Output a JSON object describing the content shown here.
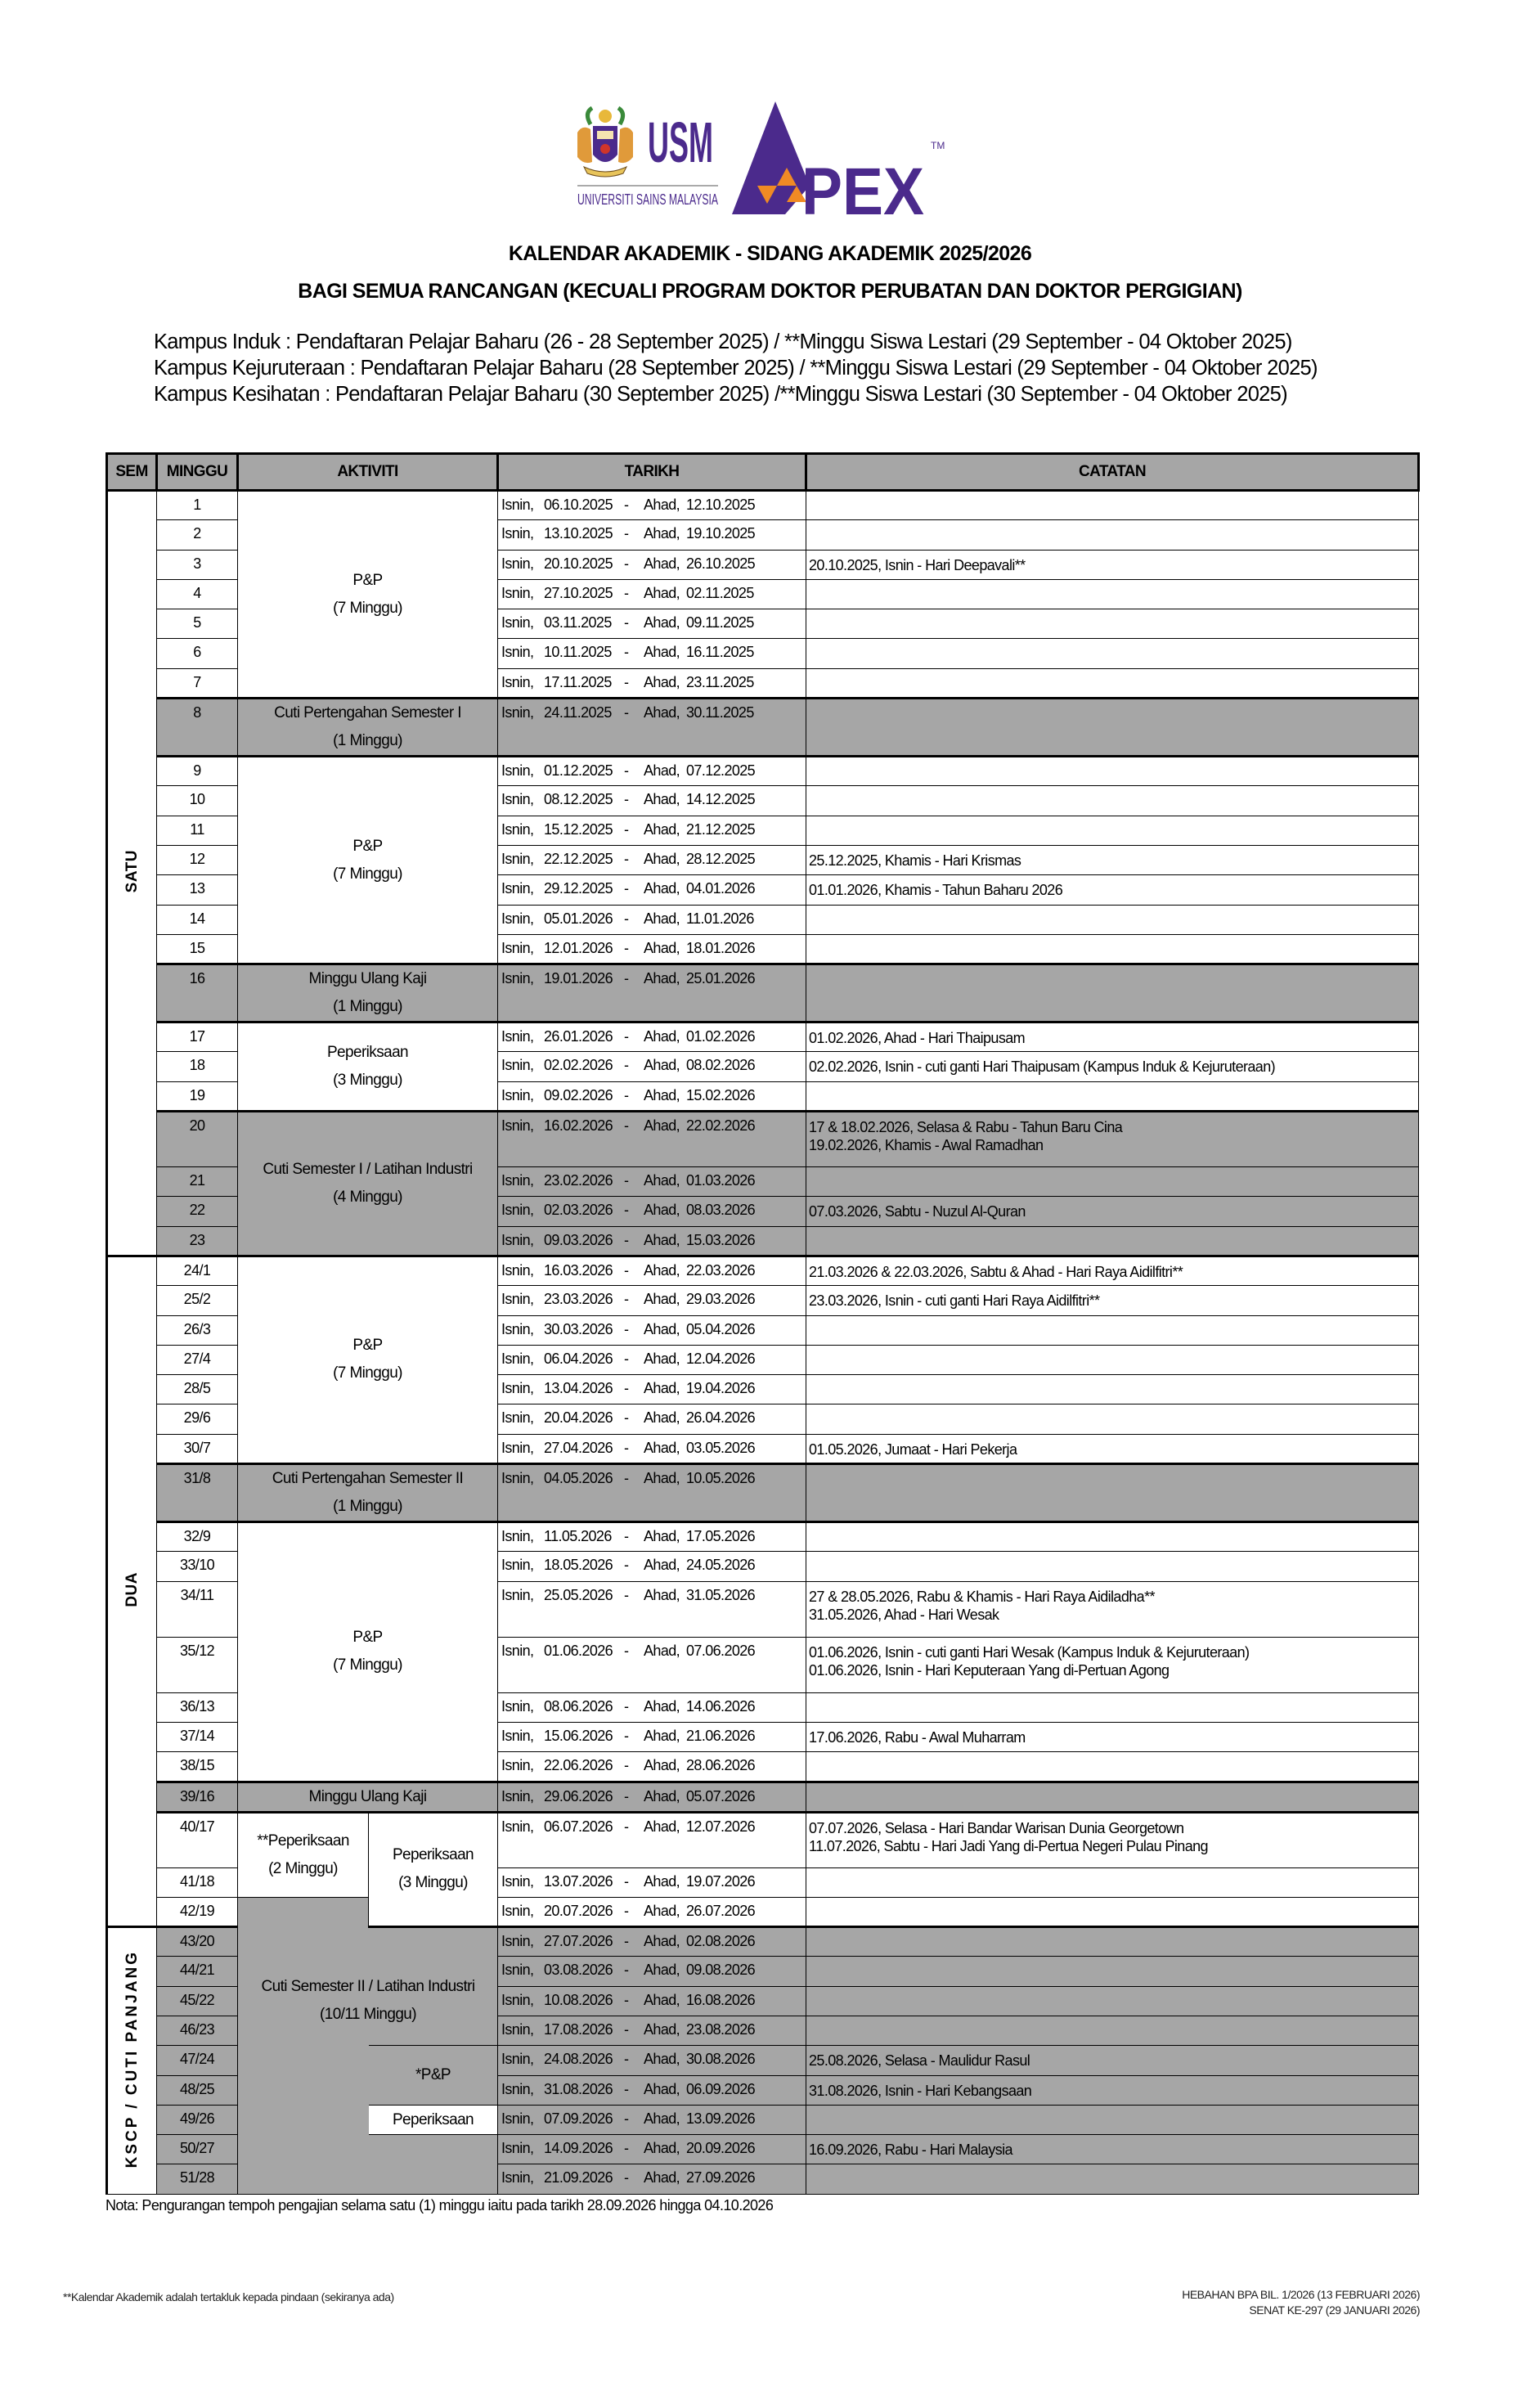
{
  "logos": {
    "usm_text": "USM",
    "usm_name": "UNIVERSITI SAINS MALAYSIA",
    "apex_text": "APEX",
    "apex_tm": "TM",
    "purple": "#4b2a8c",
    "orange": "#f08a24"
  },
  "title": "KALENDAR AKADEMIK - SIDANG AKADEMIK 2025/2026",
  "subtitle": "BAGI SEMUA RANCANGAN (KECUALI PROGRAM DOKTOR PERUBATAN DAN DOKTOR PERGIGIAN)",
  "campus_lines": [
    "Kampus Induk : Pendaftaran Pelajar Baharu (26 - 28 September 2025) / **Minggu Siswa Lestari (29 September - 04 Oktober 2025)",
    "Kampus Kejuruteraan : Pendaftaran Pelajar Baharu (28 September 2025) / **Minggu Siswa Lestari (29 September - 04 Oktober 2025)",
    "Kampus Kesihatan : Pendaftaran Pelajar Baharu (30 September 2025) /**Minggu Siswa Lestari (30 September - 04 Oktober 2025)"
  ],
  "table": {
    "headers": {
      "sem": "SEM",
      "minggu": "MINGGU",
      "aktiviti": "AKTIVITI",
      "tarikh": "TARIKH",
      "catatan": "CATATAN"
    },
    "shade_color": "#a6a6a6",
    "semesters": [
      "SATU",
      "DUA",
      "KSCP / CUTI PANJANG"
    ],
    "day_start": "Isnin,",
    "day_end": "Ahad,",
    "separator": "-",
    "activities": [
      {
        "label": "P&P",
        "duration": "(7 Minggu)"
      },
      {
        "label": "Cuti Pertengahan Semester I",
        "duration": "(1 Minggu)"
      },
      {
        "label": "P&P",
        "duration": "(7 Minggu)"
      },
      {
        "label": "Minggu Ulang Kaji",
        "duration": "(1 Minggu)"
      },
      {
        "label": "Peperiksaan",
        "duration": "(3 Minggu)"
      },
      {
        "label": "Cuti Semester I / Latihan Industri",
        "duration": "(4 Minggu)"
      },
      {
        "label": "P&P",
        "duration": "(7 Minggu)"
      },
      {
        "label": "Cuti Pertengahan Semester II",
        "duration": "(1 Minggu)"
      },
      {
        "label": "P&P",
        "duration": "(7 Minggu)"
      },
      {
        "label": "Minggu Ulang Kaji",
        "duration": ""
      },
      {
        "label": "**Peperiksaan",
        "duration": "(2 Minggu)"
      },
      {
        "label": "Peperiksaan",
        "duration": "(3 Minggu)"
      },
      {
        "label": "Cuti Semester II / Latihan Industri",
        "duration": "(10/11 Minggu)"
      },
      {
        "label": "*P&P",
        "duration": ""
      },
      {
        "label": "Peperiksaan",
        "duration": ""
      }
    ],
    "rows": [
      {
        "week": "1",
        "start": "06.10.2025",
        "end": "12.10.2025",
        "shaded": false,
        "notes": []
      },
      {
        "week": "2",
        "start": "13.10.2025",
        "end": "19.10.2025",
        "shaded": false,
        "notes": []
      },
      {
        "week": "3",
        "start": "20.10.2025",
        "end": "26.10.2025",
        "shaded": false,
        "notes": [
          "20.10.2025, Isnin - Hari Deepavali**"
        ]
      },
      {
        "week": "4",
        "start": "27.10.2025",
        "end": "02.11.2025",
        "shaded": false,
        "notes": []
      },
      {
        "week": "5",
        "start": "03.11.2025",
        "end": "09.11.2025",
        "shaded": false,
        "notes": []
      },
      {
        "week": "6",
        "start": "10.11.2025",
        "end": "16.11.2025",
        "shaded": false,
        "notes": []
      },
      {
        "week": "7",
        "start": "17.11.2025",
        "end": "23.11.2025",
        "shaded": false,
        "notes": []
      },
      {
        "week": "8",
        "start": "24.11.2025",
        "end": "30.11.2025",
        "shaded": true,
        "notes": []
      },
      {
        "week": "9",
        "start": "01.12.2025",
        "end": "07.12.2025",
        "shaded": false,
        "notes": []
      },
      {
        "week": "10",
        "start": "08.12.2025",
        "end": "14.12.2025",
        "shaded": false,
        "notes": []
      },
      {
        "week": "11",
        "start": "15.12.2025",
        "end": "21.12.2025",
        "shaded": false,
        "notes": []
      },
      {
        "week": "12",
        "start": "22.12.2025",
        "end": "28.12.2025",
        "shaded": false,
        "notes": [
          "25.12.2025, Khamis - Hari Krismas"
        ]
      },
      {
        "week": "13",
        "start": "29.12.2025",
        "end": "04.01.2026",
        "shaded": false,
        "notes": [
          "01.01.2026, Khamis - Tahun Baharu 2026"
        ]
      },
      {
        "week": "14",
        "start": "05.01.2026",
        "end": "11.01.2026",
        "shaded": false,
        "notes": []
      },
      {
        "week": "15",
        "start": "12.01.2026",
        "end": "18.01.2026",
        "shaded": false,
        "notes": []
      },
      {
        "week": "16",
        "start": "19.01.2026",
        "end": "25.01.2026",
        "shaded": true,
        "notes": []
      },
      {
        "week": "17",
        "start": "26.01.2026",
        "end": "01.02.2026",
        "shaded": false,
        "notes": [
          "01.02.2026, Ahad - Hari Thaipusam"
        ]
      },
      {
        "week": "18",
        "start": "02.02.2026",
        "end": "08.02.2026",
        "shaded": false,
        "notes": [
          "02.02.2026, Isnin - cuti ganti Hari Thaipusam (Kampus Induk & Kejuruteraan)"
        ]
      },
      {
        "week": "19",
        "start": "09.02.2026",
        "end": "15.02.2026",
        "shaded": false,
        "notes": []
      },
      {
        "week": "20",
        "start": "16.02.2026",
        "end": "22.02.2026",
        "shaded": true,
        "notes": [
          "17 & 18.02.2026, Selasa & Rabu - Tahun Baru Cina",
          "19.02.2026, Khamis - Awal Ramadhan"
        ]
      },
      {
        "week": "21",
        "start": "23.02.2026",
        "end": "01.03.2026",
        "shaded": true,
        "notes": []
      },
      {
        "week": "22",
        "start": "02.03.2026",
        "end": "08.03.2026",
        "shaded": true,
        "notes": [
          "07.03.2026, Sabtu - Nuzul Al-Quran"
        ]
      },
      {
        "week": "23",
        "start": "09.03.2026",
        "end": "15.03.2026",
        "shaded": true,
        "notes": []
      },
      {
        "week": "24/1",
        "start": "16.03.2026",
        "end": "22.03.2026",
        "shaded": false,
        "notes": [
          "21.03.2026 & 22.03.2026, Sabtu & Ahad - Hari Raya Aidilfitri**"
        ]
      },
      {
        "week": "25/2",
        "start": "23.03.2026",
        "end": "29.03.2026",
        "shaded": false,
        "notes": [
          "23.03.2026, Isnin - cuti ganti Hari Raya Aidilfitri**"
        ]
      },
      {
        "week": "26/3",
        "start": "30.03.2026",
        "end": "05.04.2026",
        "shaded": false,
        "notes": []
      },
      {
        "week": "27/4",
        "start": "06.04.2026",
        "end": "12.04.2026",
        "shaded": false,
        "notes": []
      },
      {
        "week": "28/5",
        "start": "13.04.2026",
        "end": "19.04.2026",
        "shaded": false,
        "notes": []
      },
      {
        "week": "29/6",
        "start": "20.04.2026",
        "end": "26.04.2026",
        "shaded": false,
        "notes": []
      },
      {
        "week": "30/7",
        "start": "27.04.2026",
        "end": "03.05.2026",
        "shaded": false,
        "notes": [
          "01.05.2026, Jumaat - Hari Pekerja"
        ]
      },
      {
        "week": "31/8",
        "start": "04.05.2026",
        "end": "10.05.2026",
        "shaded": true,
        "notes": []
      },
      {
        "week": "32/9",
        "start": "11.05.2026",
        "end": "17.05.2026",
        "shaded": false,
        "notes": []
      },
      {
        "week": "33/10",
        "start": "18.05.2026",
        "end": "24.05.2026",
        "shaded": false,
        "notes": []
      },
      {
        "week": "34/11",
        "start": "25.05.2026",
        "end": "31.05.2026",
        "shaded": false,
        "notes": [
          "27 & 28.05.2026, Rabu & Khamis - Hari Raya Aidiladha**",
          "31.05.2026, Ahad - Hari Wesak"
        ]
      },
      {
        "week": "35/12",
        "start": "01.06.2026",
        "end": "07.06.2026",
        "shaded": false,
        "notes": [
          "01.06.2026, Isnin - cuti ganti Hari Wesak (Kampus Induk & Kejuruteraan)",
          "01.06.2026, Isnin - Hari Keputeraan Yang di-Pertuan Agong"
        ]
      },
      {
        "week": "36/13",
        "start": "08.06.2026",
        "end": "14.06.2026",
        "shaded": false,
        "notes": []
      },
      {
        "week": "37/14",
        "start": "15.06.2026",
        "end": "21.06.2026",
        "shaded": false,
        "notes": [
          "17.06.2026, Rabu - Awal Muharram"
        ]
      },
      {
        "week": "38/15",
        "start": "22.06.2026",
        "end": "28.06.2026",
        "shaded": false,
        "notes": []
      },
      {
        "week": "39/16",
        "start": "29.06.2026",
        "end": "05.07.2026",
        "shaded": true,
        "notes": []
      },
      {
        "week": "40/17",
        "start": "06.07.2026",
        "end": "12.07.2026",
        "shaded": false,
        "notes": [
          "07.07.2026, Selasa - Hari Bandar Warisan Dunia Georgetown",
          "11.07.2026, Sabtu - Hari Jadi Yang di-Pertua Negeri Pulau Pinang"
        ]
      },
      {
        "week": "41/18",
        "start": "13.07.2026",
        "end": "19.07.2026",
        "shaded": false,
        "notes": []
      },
      {
        "week": "42/19",
        "start": "20.07.2026",
        "end": "26.07.2026",
        "shaded": false,
        "notes": []
      },
      {
        "week": "43/20",
        "start": "27.07.2026",
        "end": "02.08.2026",
        "shaded": true,
        "notes": []
      },
      {
        "week": "44/21",
        "start": "03.08.2026",
        "end": "09.08.2026",
        "shaded": true,
        "notes": []
      },
      {
        "week": "45/22",
        "start": "10.08.2026",
        "end": "16.08.2026",
        "shaded": true,
        "notes": []
      },
      {
        "week": "46/23",
        "start": "17.08.2026",
        "end": "23.08.2026",
        "shaded": true,
        "notes": []
      },
      {
        "week": "47/24",
        "start": "24.08.2026",
        "end": "30.08.2026",
        "shaded": true,
        "notes": [
          "25.08.2026, Selasa - Maulidur Rasul"
        ]
      },
      {
        "week": "48/25",
        "start": "31.08.2026",
        "end": "06.09.2026",
        "shaded": true,
        "notes": [
          "31.08.2026, Isnin - Hari Kebangsaan"
        ]
      },
      {
        "week": "49/26",
        "start": "07.09.2026",
        "end": "13.09.2026",
        "shaded": true,
        "notes": []
      },
      {
        "week": "50/27",
        "start": "14.09.2026",
        "end": "20.09.2026",
        "shaded": true,
        "notes": [
          "16.09.2026, Rabu - Hari Malaysia"
        ]
      },
      {
        "week": "51/28",
        "start": "21.09.2026",
        "end": "27.09.2026",
        "shaded": true,
        "notes": []
      }
    ]
  },
  "nota": "Nota: Pengurangan tempoh pengajian selama satu (1) minggu iaitu pada tarikh 28.09.2026 hingga 04.10.2026",
  "footer": {
    "disclaimer": "**Kalendar Akademik adalah tertakluk kepada pindaan (sekiranya ada)",
    "ref_lines": [
      "HEBAHAN BPA BIL. 1/2026 (13 FEBRUARI 2026)",
      "SENAT KE-297 (29 JANUARI 2026)"
    ]
  }
}
